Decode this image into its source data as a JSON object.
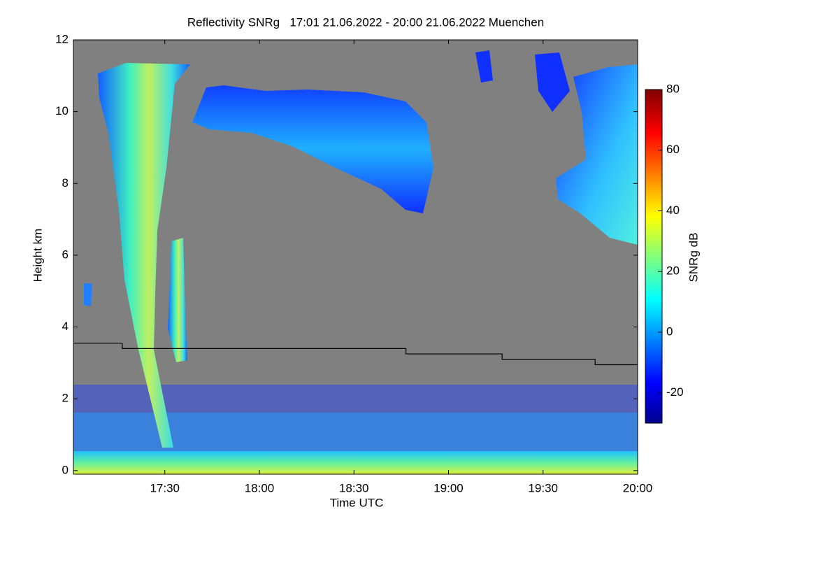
{
  "chart_data": {
    "type": "heatmap",
    "title": "Reflectivity SNRg   17:01 21.06.2022 - 20:00 21.06.2022 Muenchen",
    "x_label": "Time UTC",
    "y_label": "Height km",
    "xlim": [
      1021,
      1200
    ],
    "xticks": [
      {
        "value": 1050,
        "label": "17:30"
      },
      {
        "value": 1080,
        "label": "18:00"
      },
      {
        "value": 1110,
        "label": "18:30"
      },
      {
        "value": 1140,
        "label": "19:00"
      },
      {
        "value": 1170,
        "label": "19:30"
      },
      {
        "value": 1200,
        "label": "20:00"
      }
    ],
    "ylim": [
      -0.1,
      12
    ],
    "yticks": [
      0,
      2,
      4,
      6,
      8,
      10,
      12
    ],
    "colorbar": {
      "label": "SNRg dB",
      "lim": [
        -30,
        80
      ],
      "ticks": [
        -20,
        0,
        20,
        40,
        60,
        80
      ]
    },
    "line": {
      "color": "#000000",
      "x": [
        1021,
        1036.5,
        1036.5,
        1126.5,
        1126.5,
        1157,
        1157,
        1186.5,
        1186.5,
        1200
      ],
      "y": [
        3.55,
        3.55,
        3.4,
        3.4,
        3.25,
        3.25,
        3.1,
        3.1,
        2.95,
        2.95
      ]
    }
  }
}
